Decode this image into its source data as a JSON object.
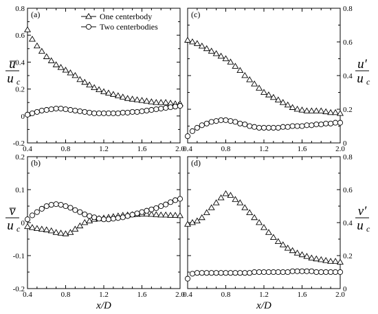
{
  "chart_data": [
    {
      "type": "scatter",
      "panel": "(a)",
      "x": [
        0.4,
        0.45,
        0.5,
        0.55,
        0.6,
        0.65,
        0.7,
        0.75,
        0.8,
        0.85,
        0.9,
        0.95,
        1.0,
        1.05,
        1.1,
        1.15,
        1.2,
        1.25,
        1.3,
        1.35,
        1.4,
        1.45,
        1.5,
        1.55,
        1.6,
        1.65,
        1.7,
        1.75,
        1.8,
        1.85,
        1.9,
        1.95,
        2.0
      ],
      "series": [
        {
          "name": "One centerbody",
          "marker": "triangle",
          "values": [
            0.64,
            0.57,
            0.52,
            0.48,
            0.44,
            0.41,
            0.38,
            0.36,
            0.34,
            0.32,
            0.3,
            0.27,
            0.25,
            0.23,
            0.21,
            0.195,
            0.18,
            0.17,
            0.16,
            0.15,
            0.14,
            0.13,
            0.125,
            0.12,
            0.115,
            0.11,
            0.105,
            0.1,
            0.1,
            0.1,
            0.095,
            0.09,
            0.09
          ]
        },
        {
          "name": "Two centerbodies",
          "marker": "circle",
          "values": [
            0.01,
            0.02,
            0.03,
            0.04,
            0.045,
            0.05,
            0.055,
            0.055,
            0.05,
            0.045,
            0.04,
            0.035,
            0.03,
            0.025,
            0.02,
            0.02,
            0.02,
            0.02,
            0.02,
            0.02,
            0.025,
            0.025,
            0.03,
            0.03,
            0.035,
            0.04,
            0.045,
            0.05,
            0.055,
            0.06,
            0.065,
            0.07,
            0.075
          ]
        }
      ],
      "xlim": [
        0.4,
        2.0
      ],
      "ylim": [
        -0.2,
        0.8
      ],
      "xticks": [
        "0.4",
        "0.8",
        "1.2",
        "1.6",
        "2.0"
      ],
      "yticks": [
        "-0.2",
        "0",
        "0.2",
        "0.4",
        "0.6",
        "0.8"
      ],
      "ylabel_num": "u̅",
      "ylabel_den": "u",
      "ylabel_sub": "c"
    },
    {
      "type": "scatter",
      "panel": "(c)",
      "x": [
        0.4,
        0.45,
        0.5,
        0.55,
        0.6,
        0.65,
        0.7,
        0.75,
        0.8,
        0.85,
        0.9,
        0.95,
        1.0,
        1.05,
        1.1,
        1.15,
        1.2,
        1.25,
        1.3,
        1.35,
        1.4,
        1.45,
        1.5,
        1.55,
        1.6,
        1.65,
        1.7,
        1.75,
        1.8,
        1.85,
        1.9,
        1.95,
        2.0
      ],
      "series": [
        {
          "name": "One centerbody",
          "marker": "triangle",
          "values": [
            0.61,
            0.6,
            0.59,
            0.575,
            0.56,
            0.545,
            0.53,
            0.515,
            0.5,
            0.48,
            0.455,
            0.43,
            0.4,
            0.375,
            0.35,
            0.325,
            0.3,
            0.285,
            0.27,
            0.255,
            0.24,
            0.225,
            0.21,
            0.2,
            0.195,
            0.19,
            0.19,
            0.19,
            0.19,
            0.185,
            0.18,
            0.18,
            0.175
          ]
        },
        {
          "name": "Two centerbodies",
          "marker": "circle",
          "values": [
            0.04,
            0.07,
            0.09,
            0.105,
            0.115,
            0.125,
            0.13,
            0.135,
            0.135,
            0.13,
            0.125,
            0.115,
            0.11,
            0.1,
            0.095,
            0.09,
            0.09,
            0.09,
            0.09,
            0.09,
            0.095,
            0.095,
            0.1,
            0.1,
            0.1,
            0.105,
            0.105,
            0.11,
            0.11,
            0.115,
            0.115,
            0.12,
            0.12
          ]
        }
      ],
      "xlim": [
        0.4,
        2.0
      ],
      "ylim": [
        0,
        0.8
      ],
      "xticks": [
        "0.4",
        "0.8",
        "1.2",
        "1.6",
        "2.0"
      ],
      "yticks": [
        "0",
        "0.2",
        "0.4",
        "0.6",
        "0.8"
      ],
      "ylabel_num": "u′",
      "ylabel_den": "u",
      "ylabel_sub": "c"
    },
    {
      "type": "scatter",
      "panel": "(b)",
      "x": [
        0.4,
        0.45,
        0.5,
        0.55,
        0.6,
        0.65,
        0.7,
        0.75,
        0.8,
        0.85,
        0.9,
        0.95,
        1.0,
        1.05,
        1.1,
        1.15,
        1.2,
        1.25,
        1.3,
        1.35,
        1.4,
        1.45,
        1.5,
        1.55,
        1.6,
        1.65,
        1.7,
        1.75,
        1.8,
        1.85,
        1.9,
        1.95,
        2.0
      ],
      "series": [
        {
          "name": "One centerbody",
          "marker": "triangle",
          "values": [
            -0.012,
            -0.015,
            -0.018,
            -0.02,
            -0.022,
            -0.025,
            -0.03,
            -0.032,
            -0.034,
            -0.03,
            -0.02,
            -0.01,
            0.0,
            0.005,
            0.01,
            0.012,
            0.014,
            0.016,
            0.018,
            0.02,
            0.022,
            0.023,
            0.024,
            0.025,
            0.026,
            0.026,
            0.025,
            0.024,
            0.023,
            0.023,
            0.022,
            0.022,
            0.021
          ]
        },
        {
          "name": "Two centerbodies",
          "marker": "circle",
          "values": [
            0.01,
            0.022,
            0.032,
            0.042,
            0.05,
            0.054,
            0.056,
            0.054,
            0.05,
            0.045,
            0.038,
            0.032,
            0.025,
            0.02,
            0.016,
            0.012,
            0.01,
            0.01,
            0.012,
            0.014,
            0.016,
            0.02,
            0.024,
            0.028,
            0.032,
            0.036,
            0.04,
            0.044,
            0.05,
            0.055,
            0.062,
            0.068,
            0.072
          ]
        }
      ],
      "xlim": [
        0.4,
        2.0
      ],
      "ylim": [
        -0.2,
        0.2
      ],
      "xticks": [
        "0.4",
        "0.8",
        "1.2",
        "1.6",
        "2.0"
      ],
      "yticks": [
        "-0.2",
        "-0.1",
        "0",
        "0.1",
        "0.2"
      ],
      "ylabel_num": "v̅",
      "ylabel_den": "u",
      "ylabel_sub": "c",
      "xlabel": "x/D"
    },
    {
      "type": "scatter",
      "panel": "(d)",
      "x": [
        0.4,
        0.45,
        0.5,
        0.55,
        0.6,
        0.65,
        0.7,
        0.75,
        0.8,
        0.85,
        0.9,
        0.95,
        1.0,
        1.05,
        1.1,
        1.15,
        1.2,
        1.25,
        1.3,
        1.35,
        1.4,
        1.45,
        1.5,
        1.55,
        1.6,
        1.65,
        1.7,
        1.75,
        1.8,
        1.85,
        1.9,
        1.95,
        2.0
      ],
      "series": [
        {
          "name": "One centerbody",
          "marker": "triangle",
          "values": [
            0.39,
            0.4,
            0.41,
            0.43,
            0.46,
            0.49,
            0.52,
            0.55,
            0.575,
            0.565,
            0.54,
            0.52,
            0.49,
            0.46,
            0.43,
            0.4,
            0.37,
            0.34,
            0.31,
            0.285,
            0.265,
            0.245,
            0.23,
            0.215,
            0.205,
            0.195,
            0.185,
            0.18,
            0.175,
            0.17,
            0.165,
            0.165,
            0.16
          ]
        },
        {
          "name": "Two centerbodies",
          "marker": "circle",
          "values": [
            0.06,
            0.09,
            0.095,
            0.095,
            0.095,
            0.095,
            0.095,
            0.095,
            0.095,
            0.095,
            0.095,
            0.095,
            0.095,
            0.095,
            0.1,
            0.1,
            0.1,
            0.1,
            0.1,
            0.1,
            0.1,
            0.1,
            0.105,
            0.105,
            0.105,
            0.105,
            0.105,
            0.1,
            0.1,
            0.1,
            0.1,
            0.1,
            0.1
          ]
        }
      ],
      "xlim": [
        0.4,
        2.0
      ],
      "ylim": [
        0,
        0.8
      ],
      "xticks": [
        "0.4",
        "0.8",
        "1.2",
        "1.6",
        "2.0"
      ],
      "yticks": [
        "0",
        "0.2",
        "0.4",
        "0.6",
        "0.8"
      ],
      "ylabel_num": "v′",
      "ylabel_den": "u",
      "ylabel_sub": "c",
      "xlabel": "x/D"
    }
  ],
  "legend": {
    "placement": "top-right of panel (a)",
    "entries": [
      {
        "label": "One centerbody",
        "marker": "triangle"
      },
      {
        "label": "Two centerbodies",
        "marker": "circle"
      }
    ]
  },
  "colors": {
    "ink": "#000000",
    "marker_fill": "#ffffff",
    "background": "#ffffff"
  }
}
